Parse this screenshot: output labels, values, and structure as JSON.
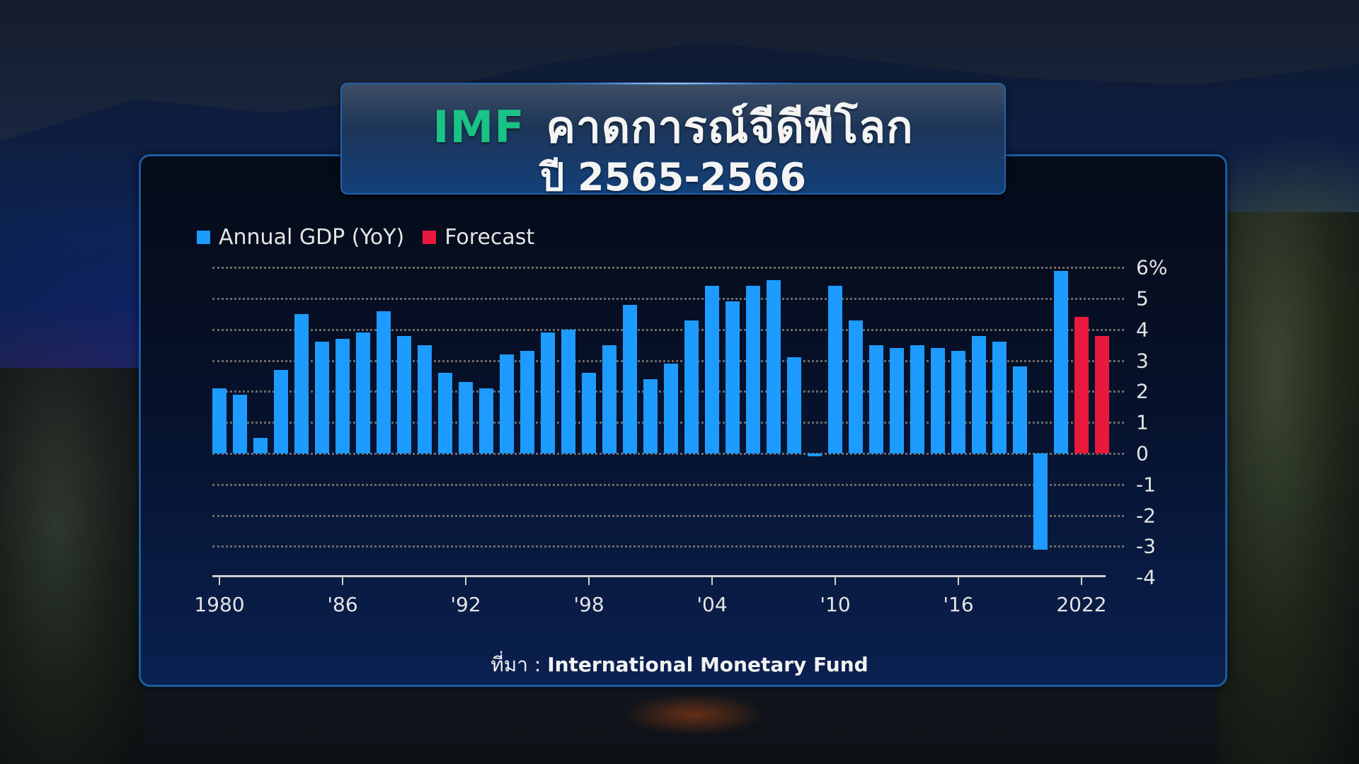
{
  "title": {
    "highlight": "IMF",
    "line1": "คาดการณ์จีดีพีโลก",
    "line2": "ปี  2565-2566",
    "highlight_color": "#19c385"
  },
  "legend": {
    "items": [
      {
        "label": "Annual GDP (YoY)",
        "color": "#1e9bff"
      },
      {
        "label": "Forecast",
        "color": "#e8193c"
      }
    ]
  },
  "source": {
    "prefix": "ที่มา  :",
    "name": "International  Monetary  Fund"
  },
  "chart_data": {
    "type": "bar",
    "title": "IMF คาดการณ์จีดีพีโลก ปี 2565-2566",
    "xlabel": "",
    "ylabel": "",
    "ylim": [
      -4,
      6
    ],
    "y_unit": "%",
    "y_ticks": [
      "6%",
      "5",
      "4",
      "3",
      "2",
      "1",
      "0",
      "-1",
      "-2",
      "-3",
      "-4"
    ],
    "x_tick_labels": [
      "1980",
      "'86",
      "'92",
      "'98",
      "'04",
      "'10",
      "'16",
      "2022"
    ],
    "grid": true,
    "legend_position": "top-left",
    "categories": [
      1980,
      1981,
      1982,
      1983,
      1984,
      1985,
      1986,
      1987,
      1988,
      1989,
      1990,
      1991,
      1992,
      1993,
      1994,
      1995,
      1996,
      1997,
      1998,
      1999,
      2000,
      2001,
      2002,
      2003,
      2004,
      2005,
      2006,
      2007,
      2008,
      2009,
      2010,
      2011,
      2012,
      2013,
      2014,
      2015,
      2016,
      2017,
      2018,
      2019,
      2020,
      2021,
      2022,
      2023
    ],
    "series": [
      {
        "name": "Annual GDP (YoY)",
        "color": "#1e9bff",
        "values": [
          2.1,
          1.9,
          0.5,
          2.7,
          4.5,
          3.6,
          3.7,
          3.9,
          4.6,
          3.8,
          3.5,
          2.6,
          2.3,
          2.1,
          3.2,
          3.3,
          3.9,
          4.0,
          2.6,
          3.5,
          4.8,
          2.4,
          2.9,
          4.3,
          5.4,
          4.9,
          5.4,
          5.6,
          3.1,
          -0.1,
          5.4,
          4.3,
          3.5,
          3.4,
          3.5,
          3.4,
          3.3,
          3.8,
          3.6,
          2.8,
          -3.1,
          5.9,
          null,
          null
        ]
      },
      {
        "name": "Forecast",
        "color": "#e8193c",
        "values": [
          null,
          null,
          null,
          null,
          null,
          null,
          null,
          null,
          null,
          null,
          null,
          null,
          null,
          null,
          null,
          null,
          null,
          null,
          null,
          null,
          null,
          null,
          null,
          null,
          null,
          null,
          null,
          null,
          null,
          null,
          null,
          null,
          null,
          null,
          null,
          null,
          null,
          null,
          null,
          null,
          null,
          null,
          4.4,
          3.8
        ]
      }
    ]
  }
}
